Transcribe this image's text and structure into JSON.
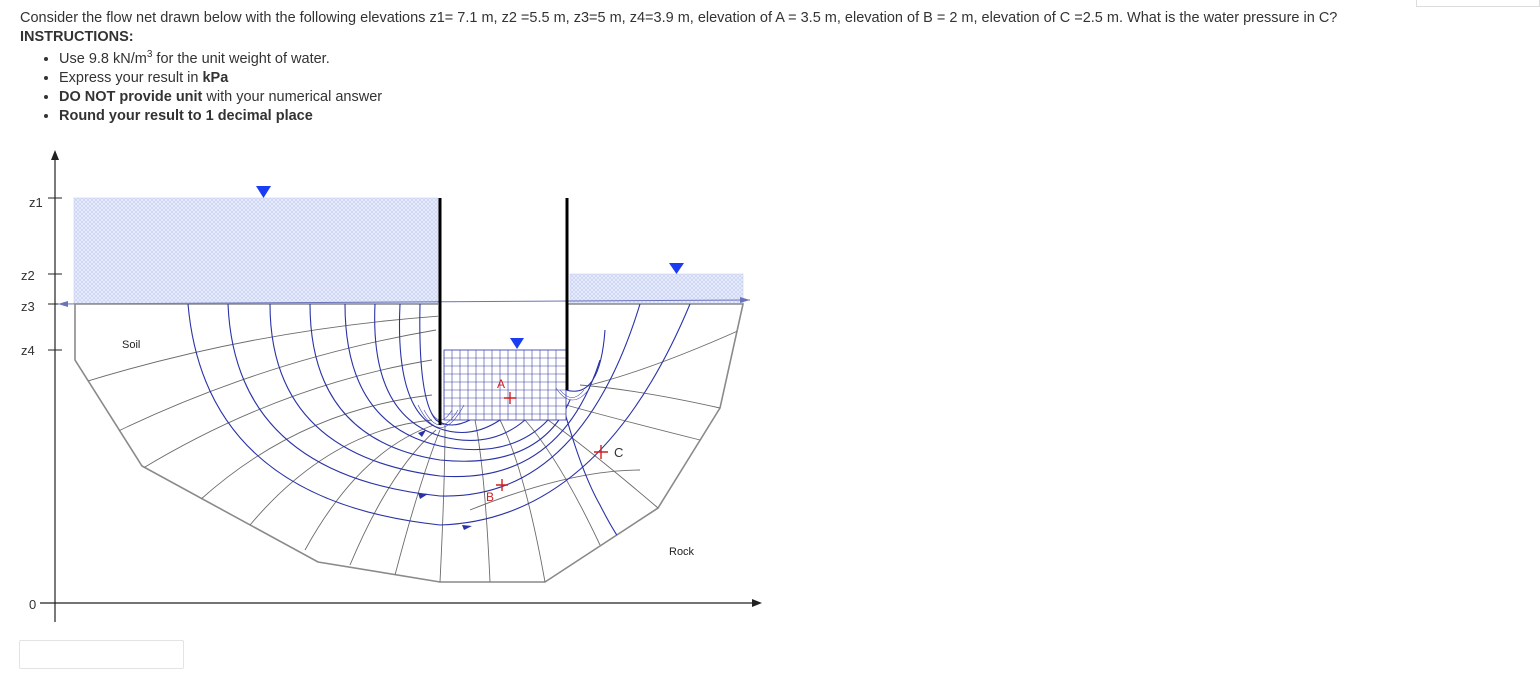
{
  "question": "Consider the flow net drawn below with the following elevations z1= 7.1 m, z2 =5.5 m, z3=5 m, z4=3.9 m, elevation of A = 3.5 m, elevation of B = 2 m, elevation of C =2.5 m. What is the water pressure in C?",
  "instructions_title": "INSTRUCTIONS:",
  "instructions": {
    "i1_pre": "Use 9.8 kN/m",
    "i1_sup": "3",
    "i1_post": " for the unit weight of water.",
    "i2_pre": "Express your result in ",
    "i2_bold": "kPa",
    "i3_bold": "DO NOT provide unit",
    "i3_post": " with your numerical answer",
    "i4_bold": "Round your result to 1 decimal place"
  },
  "diagram": {
    "axis_labels": {
      "z1": "z1",
      "z2": "z2",
      "z3": "z3",
      "z4": "z4",
      "zero": "0"
    },
    "soil_label": "Soil",
    "rock_label": "Rock",
    "point_a": "A",
    "point_b": "B",
    "point_c": "C",
    "colors": {
      "water_fill": "#dfe6fb",
      "flow_line": "#2a33a6",
      "equipotential": "#6b6b6b",
      "water_triangle": "#1a3cf2",
      "point_marker": "#d21f1f",
      "sheet_pile": "#000000",
      "boundary": "#8a8a8a"
    }
  },
  "answer": {
    "value": ""
  }
}
